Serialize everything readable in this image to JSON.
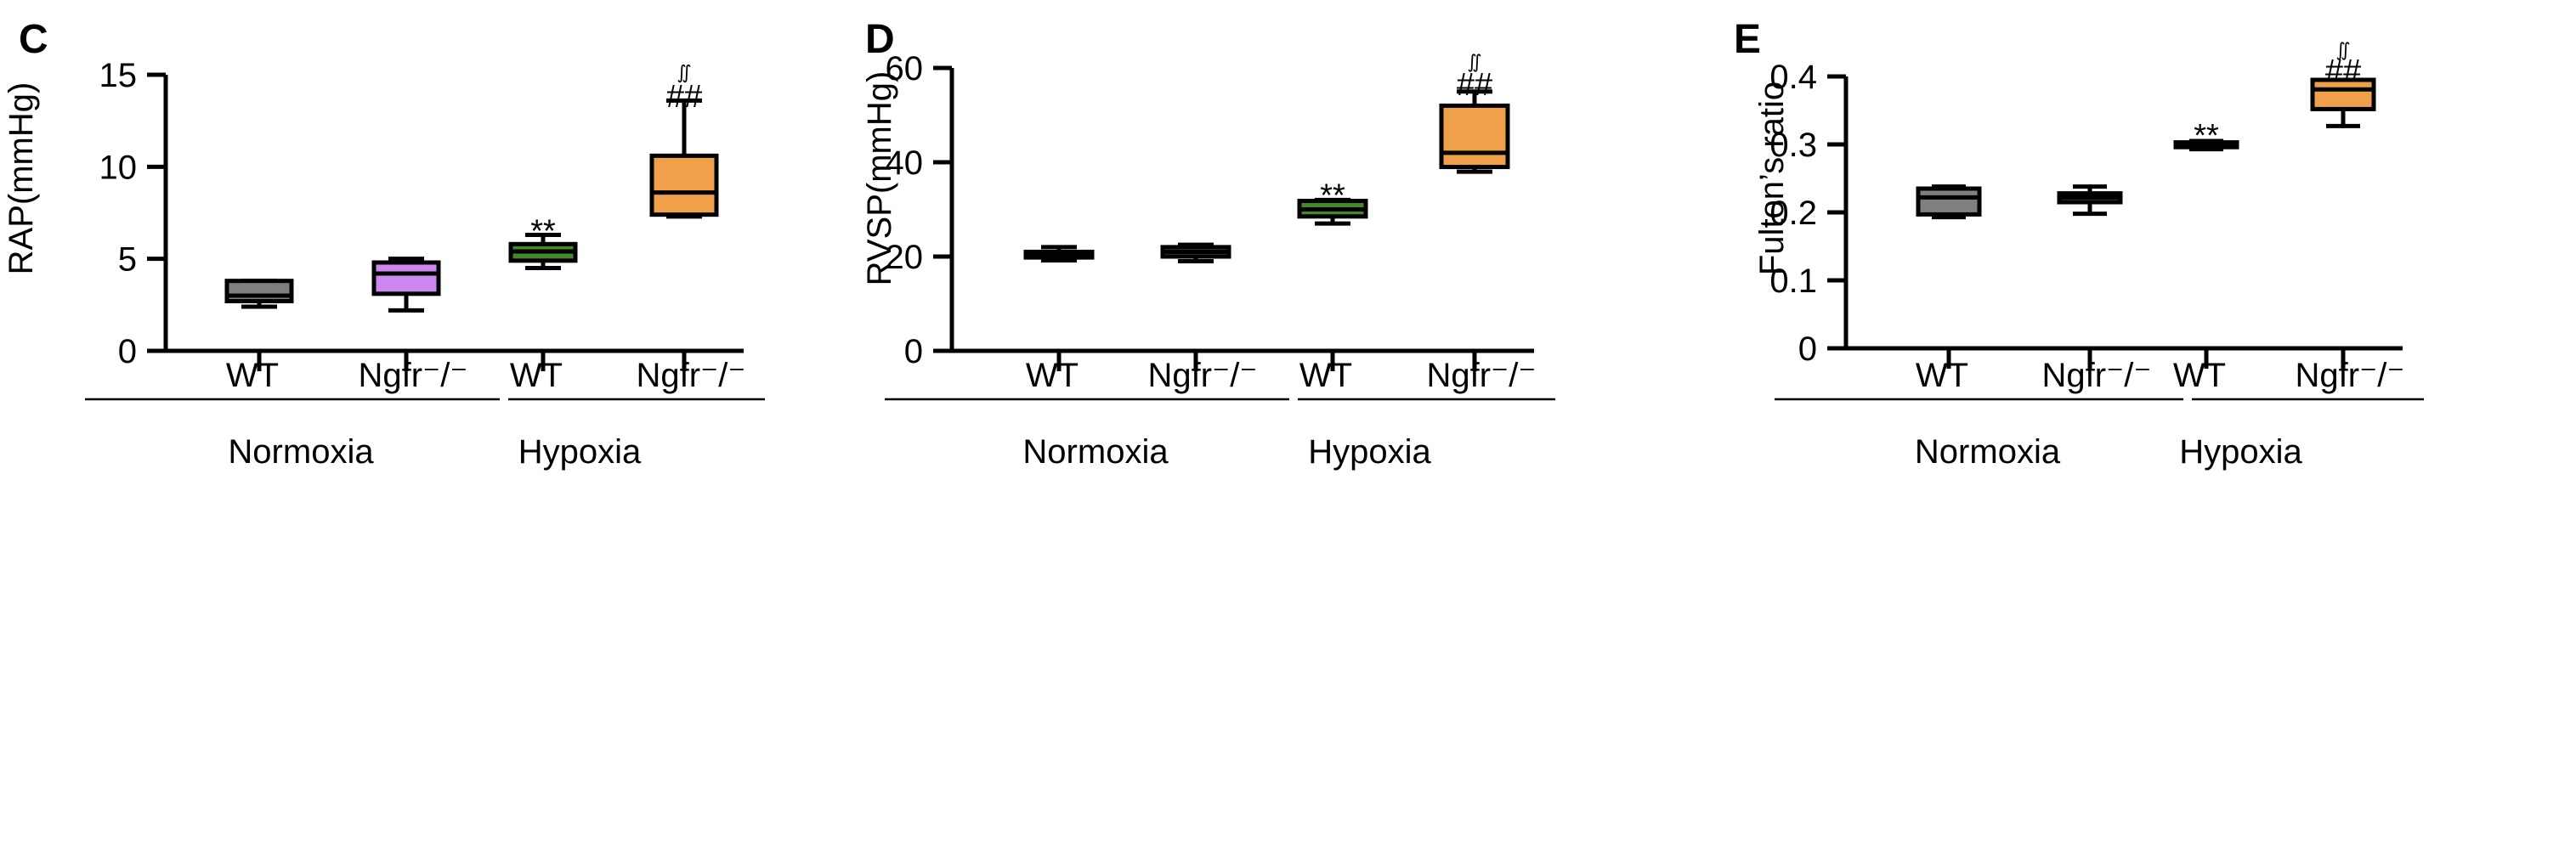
{
  "chart_data": [
    {
      "type": "box",
      "panel": "C",
      "ylabel": "RAP(mmHg)",
      "ylim": [
        0,
        15
      ],
      "yticks": [
        0,
        5,
        10,
        15
      ],
      "categories": [
        "WT",
        "Ngfr⁻/⁻",
        "WT",
        "Ngfr⁻/⁻"
      ],
      "groups": [
        {
          "label": "Normoxia",
          "members": [
            0,
            1
          ]
        },
        {
          "label": "Hypoxia",
          "members": [
            2,
            3
          ]
        }
      ],
      "boxes": [
        {
          "min": 2.4,
          "q1": 2.7,
          "median": 3.0,
          "q3": 3.8,
          "max": 3.8,
          "color": "#7f7f7f"
        },
        {
          "min": 2.2,
          "q1": 3.1,
          "median": 4.2,
          "q3": 4.8,
          "max": 5.0,
          "color": "#cc88ee"
        },
        {
          "min": 4.5,
          "q1": 4.9,
          "median": 5.4,
          "q3": 5.8,
          "max": 6.3,
          "color": "#44882c"
        },
        {
          "min": 7.3,
          "q1": 7.4,
          "median": 8.6,
          "q3": 10.6,
          "max": 13.6,
          "color": "#f0a04a"
        }
      ],
      "annotations": [
        {
          "category": 2,
          "text": "**",
          "y": 6.4
        },
        {
          "category": 3,
          "text": "##",
          "y": 13.7
        },
        {
          "category": 3,
          "text": "∬",
          "y": 14.8
        }
      ]
    },
    {
      "type": "box",
      "panel": "D",
      "ylabel": "RVSP(mmHg)",
      "ylim": [
        0,
        60
      ],
      "yticks": [
        0,
        20,
        40,
        60
      ],
      "categories": [
        "WT",
        "Ngfr⁻/⁻",
        "WT",
        "Ngfr⁻/⁻"
      ],
      "groups": [
        {
          "label": "Normoxia",
          "members": [
            0,
            1
          ]
        },
        {
          "label": "Hypoxia",
          "members": [
            2,
            3
          ]
        }
      ],
      "boxes": [
        {
          "min": 19.2,
          "q1": 19.8,
          "median": 20.3,
          "q3": 21.0,
          "max": 22.0,
          "color": "#555555"
        },
        {
          "min": 19.0,
          "q1": 20.0,
          "median": 21.0,
          "q3": 22.0,
          "max": 22.5,
          "color": "#555555"
        },
        {
          "min": 27.0,
          "q1": 28.5,
          "median": 30.0,
          "q3": 31.8,
          "max": 32.0,
          "color": "#44882c"
        },
        {
          "min": 38.0,
          "q1": 39.0,
          "median": 42.0,
          "q3": 52.0,
          "max": 55.0,
          "color": "#f0a04a"
        }
      ],
      "annotations": [
        {
          "category": 2,
          "text": "**",
          "y": 32.5
        },
        {
          "category": 3,
          "text": "##",
          "y": 56
        },
        {
          "category": 3,
          "text": "∬",
          "y": 60
        }
      ]
    },
    {
      "type": "box",
      "panel": "E",
      "ylabel": "Fulton’s ratio",
      "ylim": [
        0,
        0.45
      ],
      "yticks": [
        0,
        0.1,
        0.2,
        0.3,
        0.4
      ],
      "categories": [
        "WT",
        "Ngfr⁻/⁻",
        "WT",
        "Ngfr⁻/⁻"
      ],
      "groups": [
        {
          "label": "Normoxia",
          "members": [
            0,
            1
          ]
        },
        {
          "label": "Hypoxia",
          "members": [
            2,
            3
          ]
        }
      ],
      "boxes": [
        {
          "min": 0.193,
          "q1": 0.197,
          "median": 0.222,
          "q3": 0.235,
          "max": 0.238,
          "color": "#7f7f7f"
        },
        {
          "min": 0.198,
          "q1": 0.215,
          "median": 0.222,
          "q3": 0.228,
          "max": 0.238,
          "color": "#555555"
        },
        {
          "min": 0.293,
          "q1": 0.296,
          "median": 0.299,
          "q3": 0.303,
          "max": 0.305,
          "color": "#555555"
        },
        {
          "min": 0.327,
          "q1": 0.352,
          "median": 0.381,
          "q3": 0.395,
          "max": 0.395,
          "color": "#f0a04a"
        }
      ],
      "annotations": [
        {
          "category": 2,
          "text": "**",
          "y": 0.31
        },
        {
          "category": 3,
          "text": "##",
          "y": 0.405
        },
        {
          "category": 3,
          "text": "∬",
          "y": 0.43
        }
      ]
    }
  ]
}
